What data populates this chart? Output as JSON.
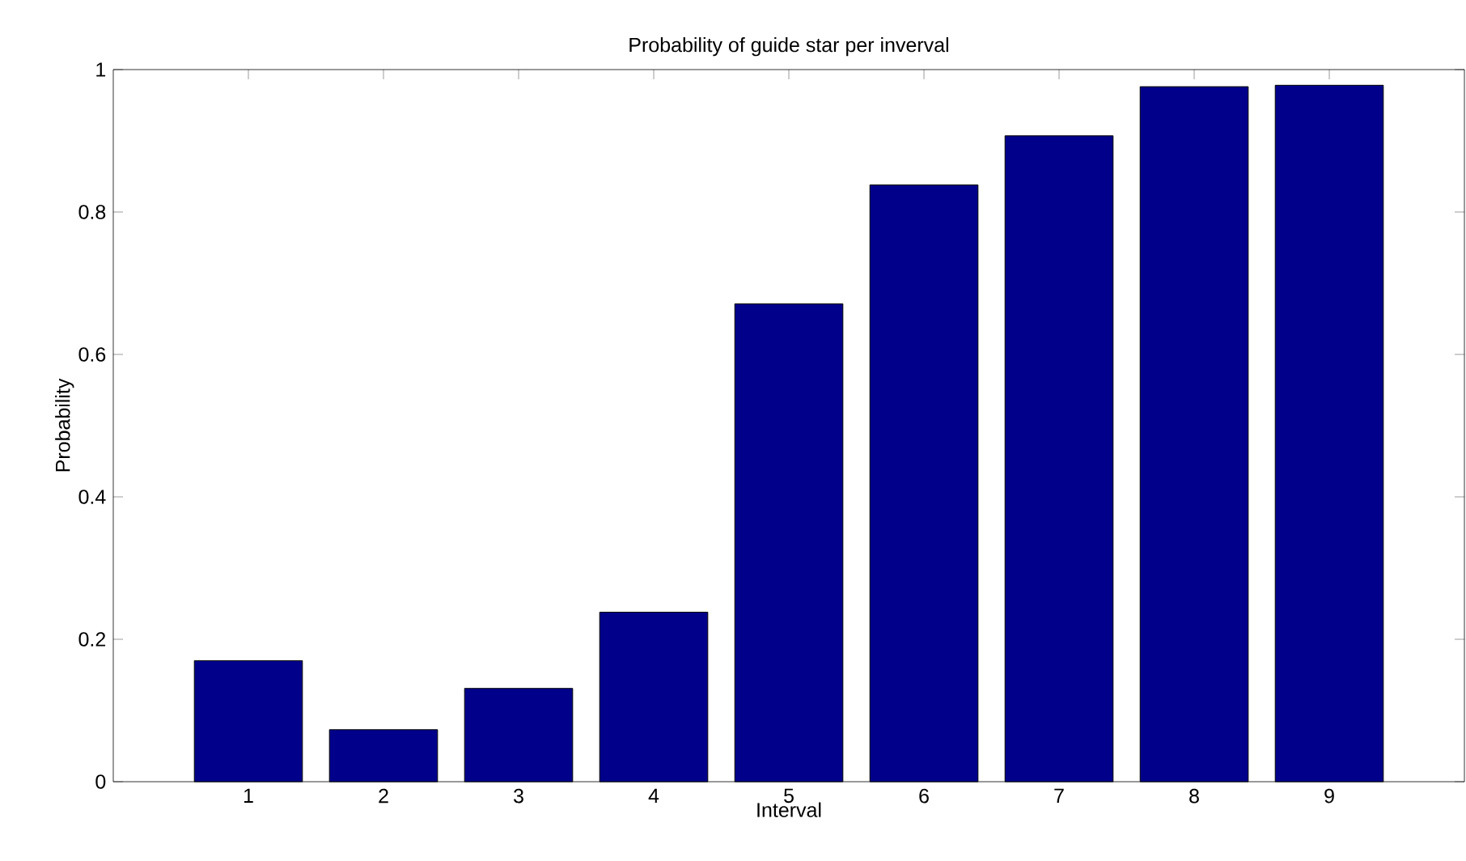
{
  "chart_data": {
    "type": "bar",
    "title": "Probability of guide star per inverval",
    "xlabel": "Interval",
    "ylabel": "Probability",
    "categories": [
      "1",
      "2",
      "3",
      "4",
      "5",
      "6",
      "7",
      "8",
      "9"
    ],
    "values": [
      0.17,
      0.073,
      0.131,
      0.238,
      0.671,
      0.838,
      0.907,
      0.976,
      0.978
    ],
    "color": "#00008b",
    "ylim": [
      0,
      1
    ],
    "yticks": [
      0,
      0.2,
      0.4,
      0.6,
      0.8,
      1
    ],
    "grid": false
  }
}
